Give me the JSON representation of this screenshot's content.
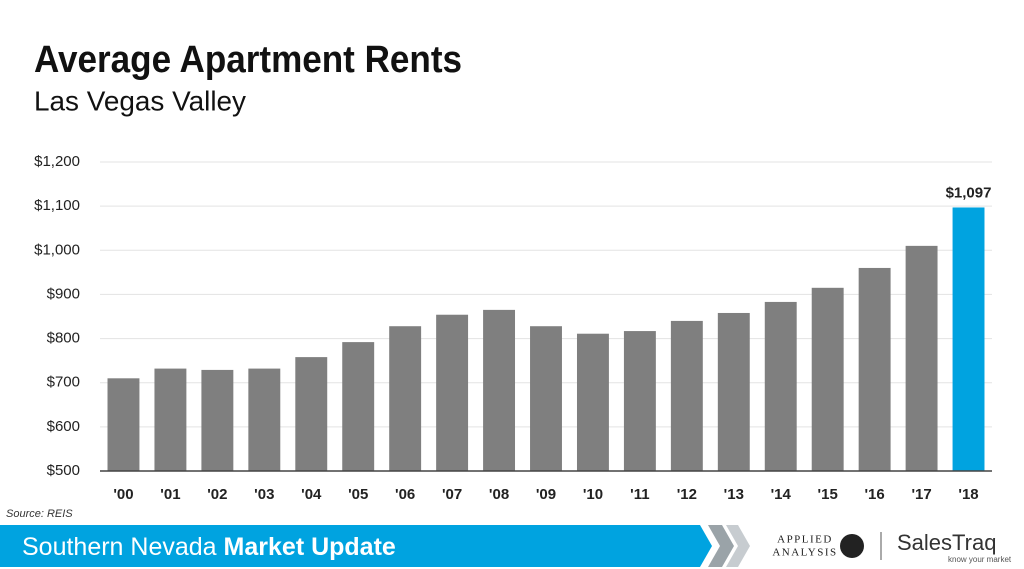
{
  "chart_data": {
    "type": "bar",
    "title": "Average Apartment Rents",
    "subtitle": "Las Vegas Valley",
    "categories": [
      "'00",
      "'01",
      "'02",
      "'03",
      "'04",
      "'05",
      "'06",
      "'07",
      "'08",
      "'09",
      "'10",
      "'11",
      "'12",
      "'13",
      "'14",
      "'15",
      "'16",
      "'17",
      "'18"
    ],
    "values": [
      710,
      732,
      729,
      732,
      758,
      792,
      828,
      854,
      865,
      828,
      811,
      817,
      840,
      858,
      883,
      915,
      960,
      1010,
      1097
    ],
    "value_labels": [
      null,
      null,
      null,
      null,
      null,
      null,
      null,
      null,
      null,
      null,
      null,
      null,
      null,
      null,
      null,
      null,
      null,
      null,
      "$1,097"
    ],
    "colors": [
      "#7f7f7f",
      "#7f7f7f",
      "#7f7f7f",
      "#7f7f7f",
      "#7f7f7f",
      "#7f7f7f",
      "#7f7f7f",
      "#7f7f7f",
      "#7f7f7f",
      "#7f7f7f",
      "#7f7f7f",
      "#7f7f7f",
      "#7f7f7f",
      "#7f7f7f",
      "#7f7f7f",
      "#7f7f7f",
      "#7f7f7f",
      "#7f7f7f",
      "#00a3e0"
    ],
    "ylim": [
      500,
      1200
    ],
    "yticks": [
      {
        "value": 500,
        "label": "$500"
      },
      {
        "value": 600,
        "label": "$600"
      },
      {
        "value": 700,
        "label": "$700"
      },
      {
        "value": 800,
        "label": "$800"
      },
      {
        "value": 900,
        "label": "$900"
      },
      {
        "value": 1000,
        "label": "$1,000"
      },
      {
        "value": 1100,
        "label": "$1,100"
      },
      {
        "value": 1200,
        "label": "$1,200"
      }
    ],
    "grid": true
  },
  "source": "Source: REIS",
  "banner": {
    "text": "Southern Nevada",
    "bold": "Market Update"
  },
  "logos": {
    "applied": "APPLIED",
    "analysis": "ANALYSIS",
    "salestraq": "SalesTraq",
    "tagline": "know your market"
  }
}
